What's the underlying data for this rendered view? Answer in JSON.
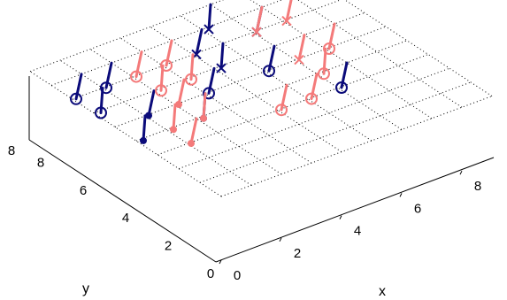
{
  "chart_data": {
    "type": "scatter",
    "subtype": "3d-scatter-with-stems",
    "view": "3d-perspective",
    "grid": true,
    "xlabel": "x",
    "ylabel": "y",
    "x_ticks": [
      "0",
      "2",
      "4",
      "6",
      "8"
    ],
    "y_ticks": [
      "0",
      "2",
      "4",
      "6",
      "8"
    ],
    "z_ticks": [
      "8"
    ],
    "xlim": [
      0,
      9
    ],
    "ylim": [
      0,
      9
    ],
    "zlim": [
      0,
      9
    ],
    "colors": {
      "navy": "#0b0b7a",
      "salmon": "#f47a7a"
    },
    "series": [
      {
        "color": "navy",
        "points": [
          {
            "x": 1,
            "y": 5,
            "z": 9,
            "marker": "dot"
          },
          {
            "x": 2,
            "y": 6,
            "z": 9,
            "marker": "dot"
          },
          {
            "x": 1,
            "y": 7,
            "z": 9,
            "marker": "circle"
          },
          {
            "x": 1,
            "y": 8,
            "z": 9,
            "marker": "circle"
          },
          {
            "x": 2,
            "y": 8,
            "z": 9,
            "marker": "circle"
          },
          {
            "x": 3,
            "y": 5,
            "z": 9,
            "marker": "dot"
          },
          {
            "x": 4,
            "y": 6,
            "z": 9,
            "marker": "circle"
          },
          {
            "x": 6,
            "y": 6,
            "z": 9,
            "marker": "circle"
          },
          {
            "x": 7,
            "y": 8,
            "z": 9,
            "marker": "x"
          },
          {
            "x": 5,
            "y": 8,
            "z": 9,
            "marker": "x"
          },
          {
            "x": 6,
            "y": 9,
            "z": 9,
            "marker": "x"
          },
          {
            "x": 5,
            "y": 7,
            "z": 9,
            "marker": "x"
          },
          {
            "x": 7,
            "y": 4,
            "z": 9,
            "marker": "circle"
          }
        ]
      },
      {
        "color": "salmon",
        "points": [
          {
            "x": 2,
            "y": 5,
            "z": 9,
            "marker": "dot"
          },
          {
            "x": 3,
            "y": 6,
            "z": 9,
            "marker": "dot"
          },
          {
            "x": 3,
            "y": 7,
            "z": 9,
            "marker": "circle"
          },
          {
            "x": 4,
            "y": 7,
            "z": 9,
            "marker": "circle"
          },
          {
            "x": 4,
            "y": 8,
            "z": 9,
            "marker": "circle"
          },
          {
            "x": 3,
            "y": 5,
            "z": 9,
            "marker": "dot"
          },
          {
            "x": 2,
            "y": 4,
            "z": 9,
            "marker": "dot"
          },
          {
            "x": 3,
            "y": 8,
            "z": 9,
            "marker": "circle"
          },
          {
            "x": 5,
            "y": 4,
            "z": 9,
            "marker": "circle"
          },
          {
            "x": 6,
            "y": 4,
            "z": 9,
            "marker": "circle"
          },
          {
            "x": 7,
            "y": 6,
            "z": 9,
            "marker": "x"
          },
          {
            "x": 8,
            "y": 6,
            "z": 9,
            "marker": "circle"
          },
          {
            "x": 7,
            "y": 8,
            "z": 9,
            "marker": "x"
          },
          {
            "x": 8,
            "y": 8,
            "z": 9,
            "marker": "x"
          },
          {
            "x": 7,
            "y": 5,
            "z": 9,
            "marker": "circle"
          }
        ]
      }
    ]
  }
}
